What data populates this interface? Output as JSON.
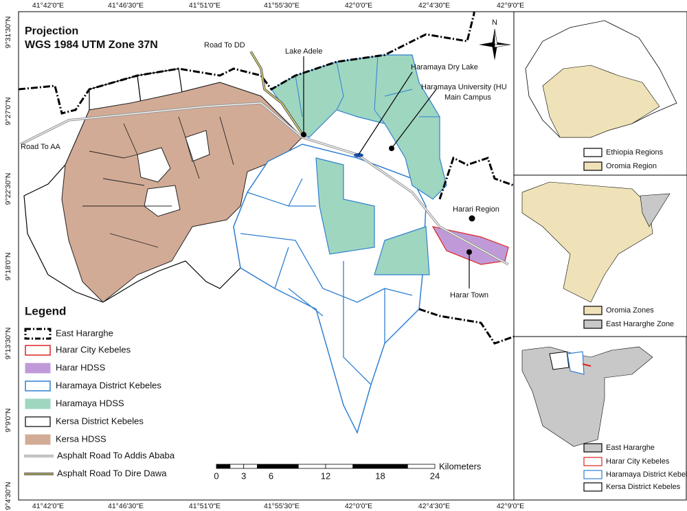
{
  "projection": {
    "title": "Projection",
    "subtitle": "WGS 1984 UTM Zone 37N"
  },
  "longitude_ticks": [
    "41°42'0\"E",
    "41°46'30\"E",
    "41°51'0\"E",
    "41°55'30\"E",
    "42°0'0\"E",
    "42°4'30\"E",
    "42°9'0\"E"
  ],
  "latitude_ticks": [
    "9°31'30\"N",
    "9°27'0\"N",
    "9°22'30\"N",
    "9°18'0\"N",
    "9°13'30\"N",
    "9°9'0\"N",
    "9°4'30\"N"
  ],
  "places": {
    "road_to_dd": "Road To DD",
    "lake_adele": "Lake Adele",
    "haramaya_dry_lake": "Haramaya Dry Lake",
    "hu_line1": "Haramaya University (HU",
    "hu_line2": "Main Campus",
    "road_to_aa": "Road To AA",
    "harari_region": "Harari Region",
    "harar_town": "Harar Town"
  },
  "north": "N",
  "legend": {
    "title": "Legend",
    "items": [
      "East Hararghe",
      "Harar City Kebeles",
      "Harar HDSS",
      "Haramaya District Kebeles",
      "Haramaya HDSS",
      "Kersa District Kebeles",
      "Kersa HDSS",
      "Asphalt Road To Addis Ababa",
      "Asphalt Road To Dire Dawa"
    ]
  },
  "scale_bar": {
    "ticks": [
      0,
      3,
      6,
      12,
      18,
      24
    ],
    "unit": "Kilometers"
  },
  "insets": [
    {
      "legend": [
        "Ethiopia Regions",
        "Oromia Region"
      ]
    },
    {
      "legend": [
        "Oromia Zones",
        "East Hararghe Zone"
      ]
    },
    {
      "legend": [
        "East Hararghe",
        "Harar City Kebeles",
        "Haramaya District Kebeles",
        "Kersa District Kebeles"
      ]
    }
  ]
}
